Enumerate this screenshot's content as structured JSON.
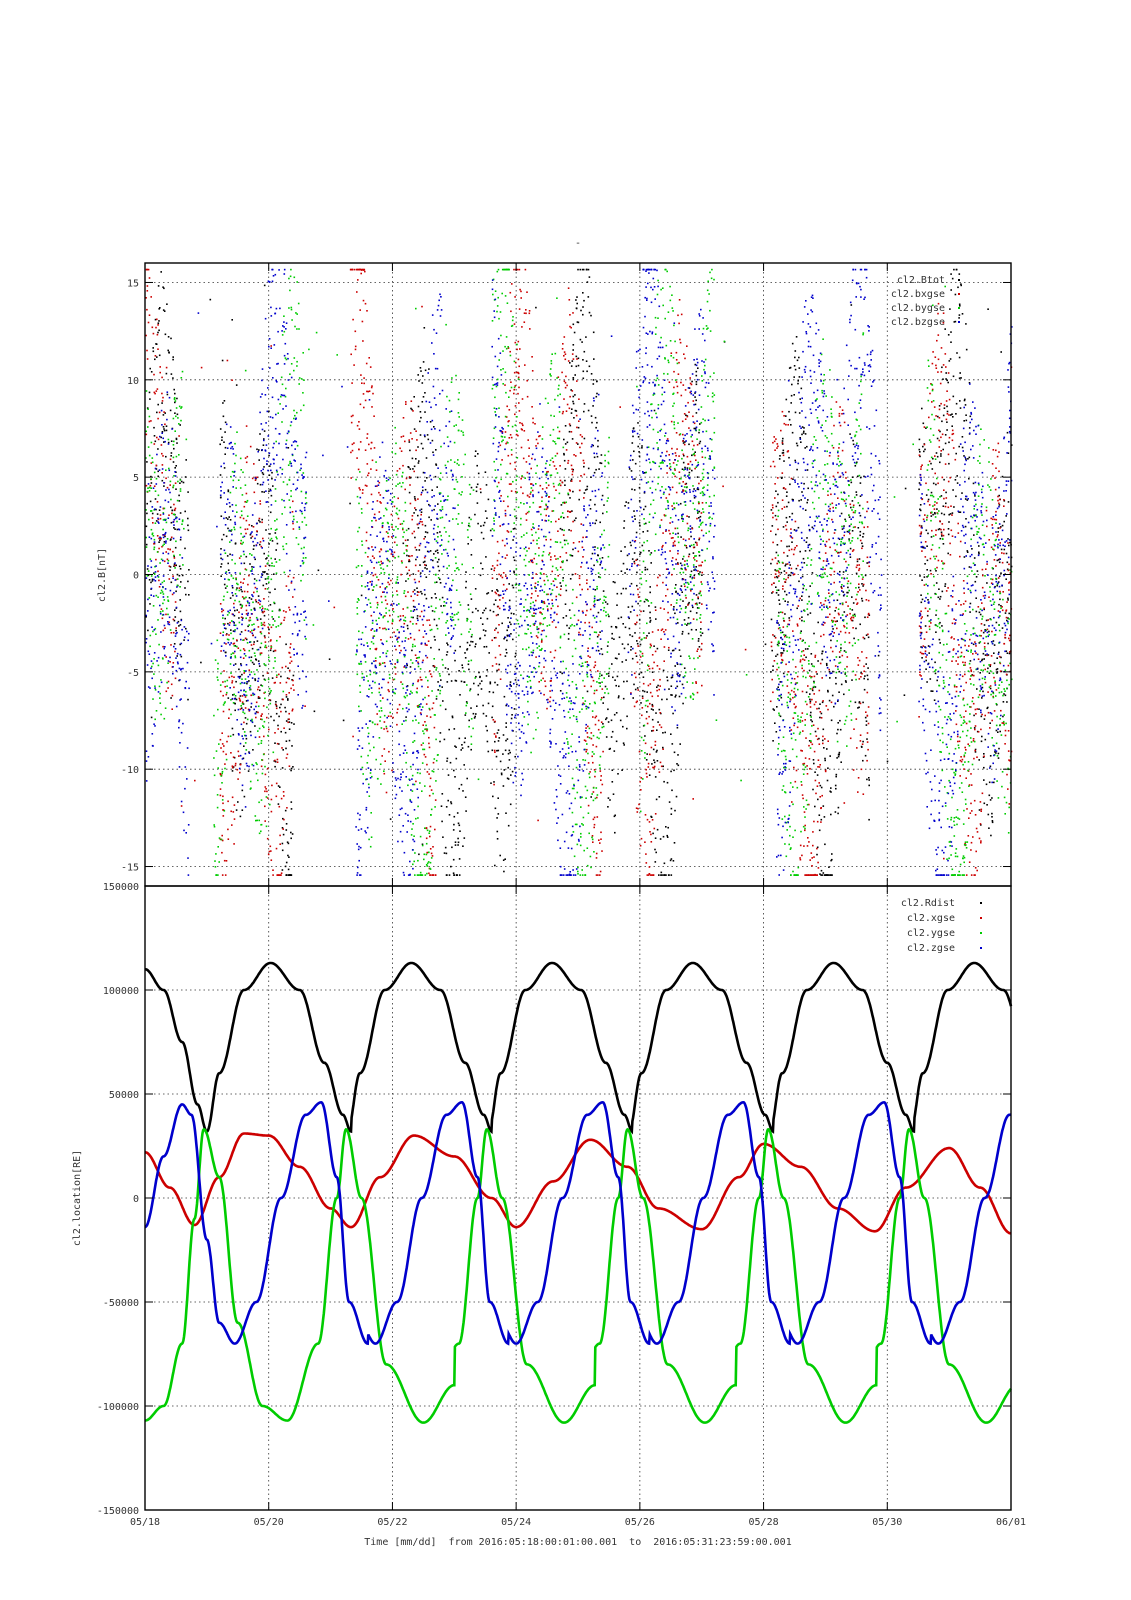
{
  "chart_data": [
    {
      "type": "scatter",
      "title": "-",
      "ylabel": "cl2.B[nT]",
      "xlabel": "",
      "xlim": [
        "05/18",
        "06/01"
      ],
      "ylim": [
        -16,
        16
      ],
      "y_ticks": [
        15,
        10,
        5,
        0,
        -5,
        -10,
        -15
      ],
      "grid": true,
      "legend_position": "top-right",
      "series": [
        {
          "name": "cl2.Btot",
          "color": "#000000",
          "segments": [
            [
              0.0,
              0.7
            ],
            [
              1.2,
              2.4
            ],
            [
              4.2,
              6.0
            ],
            [
              6.7,
              9.0
            ],
            [
              10.1,
              11.7
            ],
            [
              12.5,
              14.0
            ]
          ],
          "y_typical": [
            -15,
            16
          ]
        },
        {
          "name": "cl2.bxgse",
          "color": "#cc0000",
          "segments": [
            [
              0.0,
              0.5
            ],
            [
              1.2,
              2.4
            ],
            [
              3.3,
              4.7
            ],
            [
              5.6,
              7.4
            ],
            [
              7.9,
              9.0
            ],
            [
              10.1,
              11.7
            ],
            [
              12.5,
              14.0
            ]
          ],
          "y_typical": [
            -15,
            16
          ]
        },
        {
          "name": "cl2.bygse",
          "color": "#00cc00",
          "segments": [
            [
              0.0,
              0.6
            ],
            [
              1.1,
              2.6
            ],
            [
              3.4,
              5.3
            ],
            [
              5.6,
              7.5
            ],
            [
              8.0,
              9.2
            ],
            [
              10.2,
              11.6
            ],
            [
              12.6,
              14.0
            ]
          ],
          "y_typical": [
            -15,
            16
          ]
        },
        {
          "name": "cl2.bzgse",
          "color": "#0000cc",
          "segments": [
            [
              0.0,
              0.7
            ],
            [
              1.2,
              2.6
            ],
            [
              3.4,
              5.0
            ],
            [
              5.6,
              7.4
            ],
            [
              7.8,
              9.2
            ],
            [
              10.2,
              11.9
            ],
            [
              12.5,
              14.0
            ]
          ],
          "y_typical": [
            -15,
            16
          ]
        }
      ]
    },
    {
      "type": "line",
      "ylabel": "cl2.location[RE]",
      "xlabel": "Time [mm/dd]  from 2016:05:18:00:01:00.001  to  2016:05:31:23:59:00.001",
      "x_tick_labels": [
        "05/18",
        "05/20",
        "05/22",
        "05/24",
        "05/26",
        "05/28",
        "05/30",
        "06/01"
      ],
      "xlim_days": [
        0,
        14
      ],
      "ylim": [
        -150000,
        150000
      ],
      "y_ticks": [
        150000,
        100000,
        50000,
        0,
        -50000,
        -100000,
        -150000
      ],
      "y_tick_labels": [
        "150000",
        "100000",
        "50000",
        "0",
        "-50000",
        "-100000",
        "-150000"
      ],
      "grid": true,
      "legend_position": "top-right",
      "orbit_period_days": 2.275,
      "series": [
        {
          "name": "cl2.Rdist",
          "color": "#000000",
          "x": [
            0.0,
            0.3,
            0.6,
            0.85,
            1.0,
            1.2,
            1.6,
            2.03,
            2.5,
            2.9,
            3.2,
            3.33
          ],
          "y": [
            110000,
            100000,
            75000,
            45000,
            32000,
            60000,
            100000,
            113000,
            100000,
            65000,
            40000,
            32000
          ]
        },
        {
          "name": "cl2.xgse",
          "color": "#cc0000",
          "x": [
            0.0,
            0.4,
            0.8,
            1.2,
            1.6,
            2.0,
            2.5,
            3.0,
            3.33,
            3.8,
            4.35,
            5.0,
            5.6,
            6.0,
            6.6,
            7.2,
            7.8,
            8.3,
            9.0,
            9.6,
            10.0,
            10.6,
            11.2,
            11.8,
            12.3,
            13.0,
            13.5,
            14.0
          ],
          "y": [
            22000,
            5000,
            -13000,
            10000,
            31000,
            30000,
            15000,
            -5000,
            -14000,
            10000,
            30000,
            20000,
            0,
            -14000,
            8000,
            28000,
            15000,
            -5000,
            -15000,
            10000,
            26000,
            15000,
            -5000,
            -16000,
            5000,
            24000,
            5000,
            -17000
          ]
        },
        {
          "name": "cl2.ygse",
          "color": "#00cc00",
          "x": [
            0.0,
            0.3,
            0.6,
            0.8,
            0.95,
            1.2,
            1.5,
            1.9,
            2.3,
            2.8,
            3.1,
            3.25,
            3.5,
            3.9,
            4.5,
            5.0
          ],
          "y": [
            -107000,
            -100000,
            -70000,
            -10000,
            33000,
            10000,
            -60000,
            -100000,
            -107000,
            -70000,
            0,
            33000,
            0,
            -80000,
            -108000,
            -90000
          ]
        },
        {
          "name": "cl2.zgse",
          "color": "#0000cc",
          "x": [
            0.0,
            0.3,
            0.6,
            0.75,
            1.0,
            1.2,
            1.45,
            1.8,
            2.2,
            2.6,
            2.85,
            3.1,
            3.3,
            3.6
          ],
          "y": [
            -14000,
            20000,
            45000,
            40000,
            -20000,
            -60000,
            -70000,
            -50000,
            0,
            40000,
            46000,
            10000,
            -50000,
            -70000
          ]
        }
      ]
    }
  ]
}
